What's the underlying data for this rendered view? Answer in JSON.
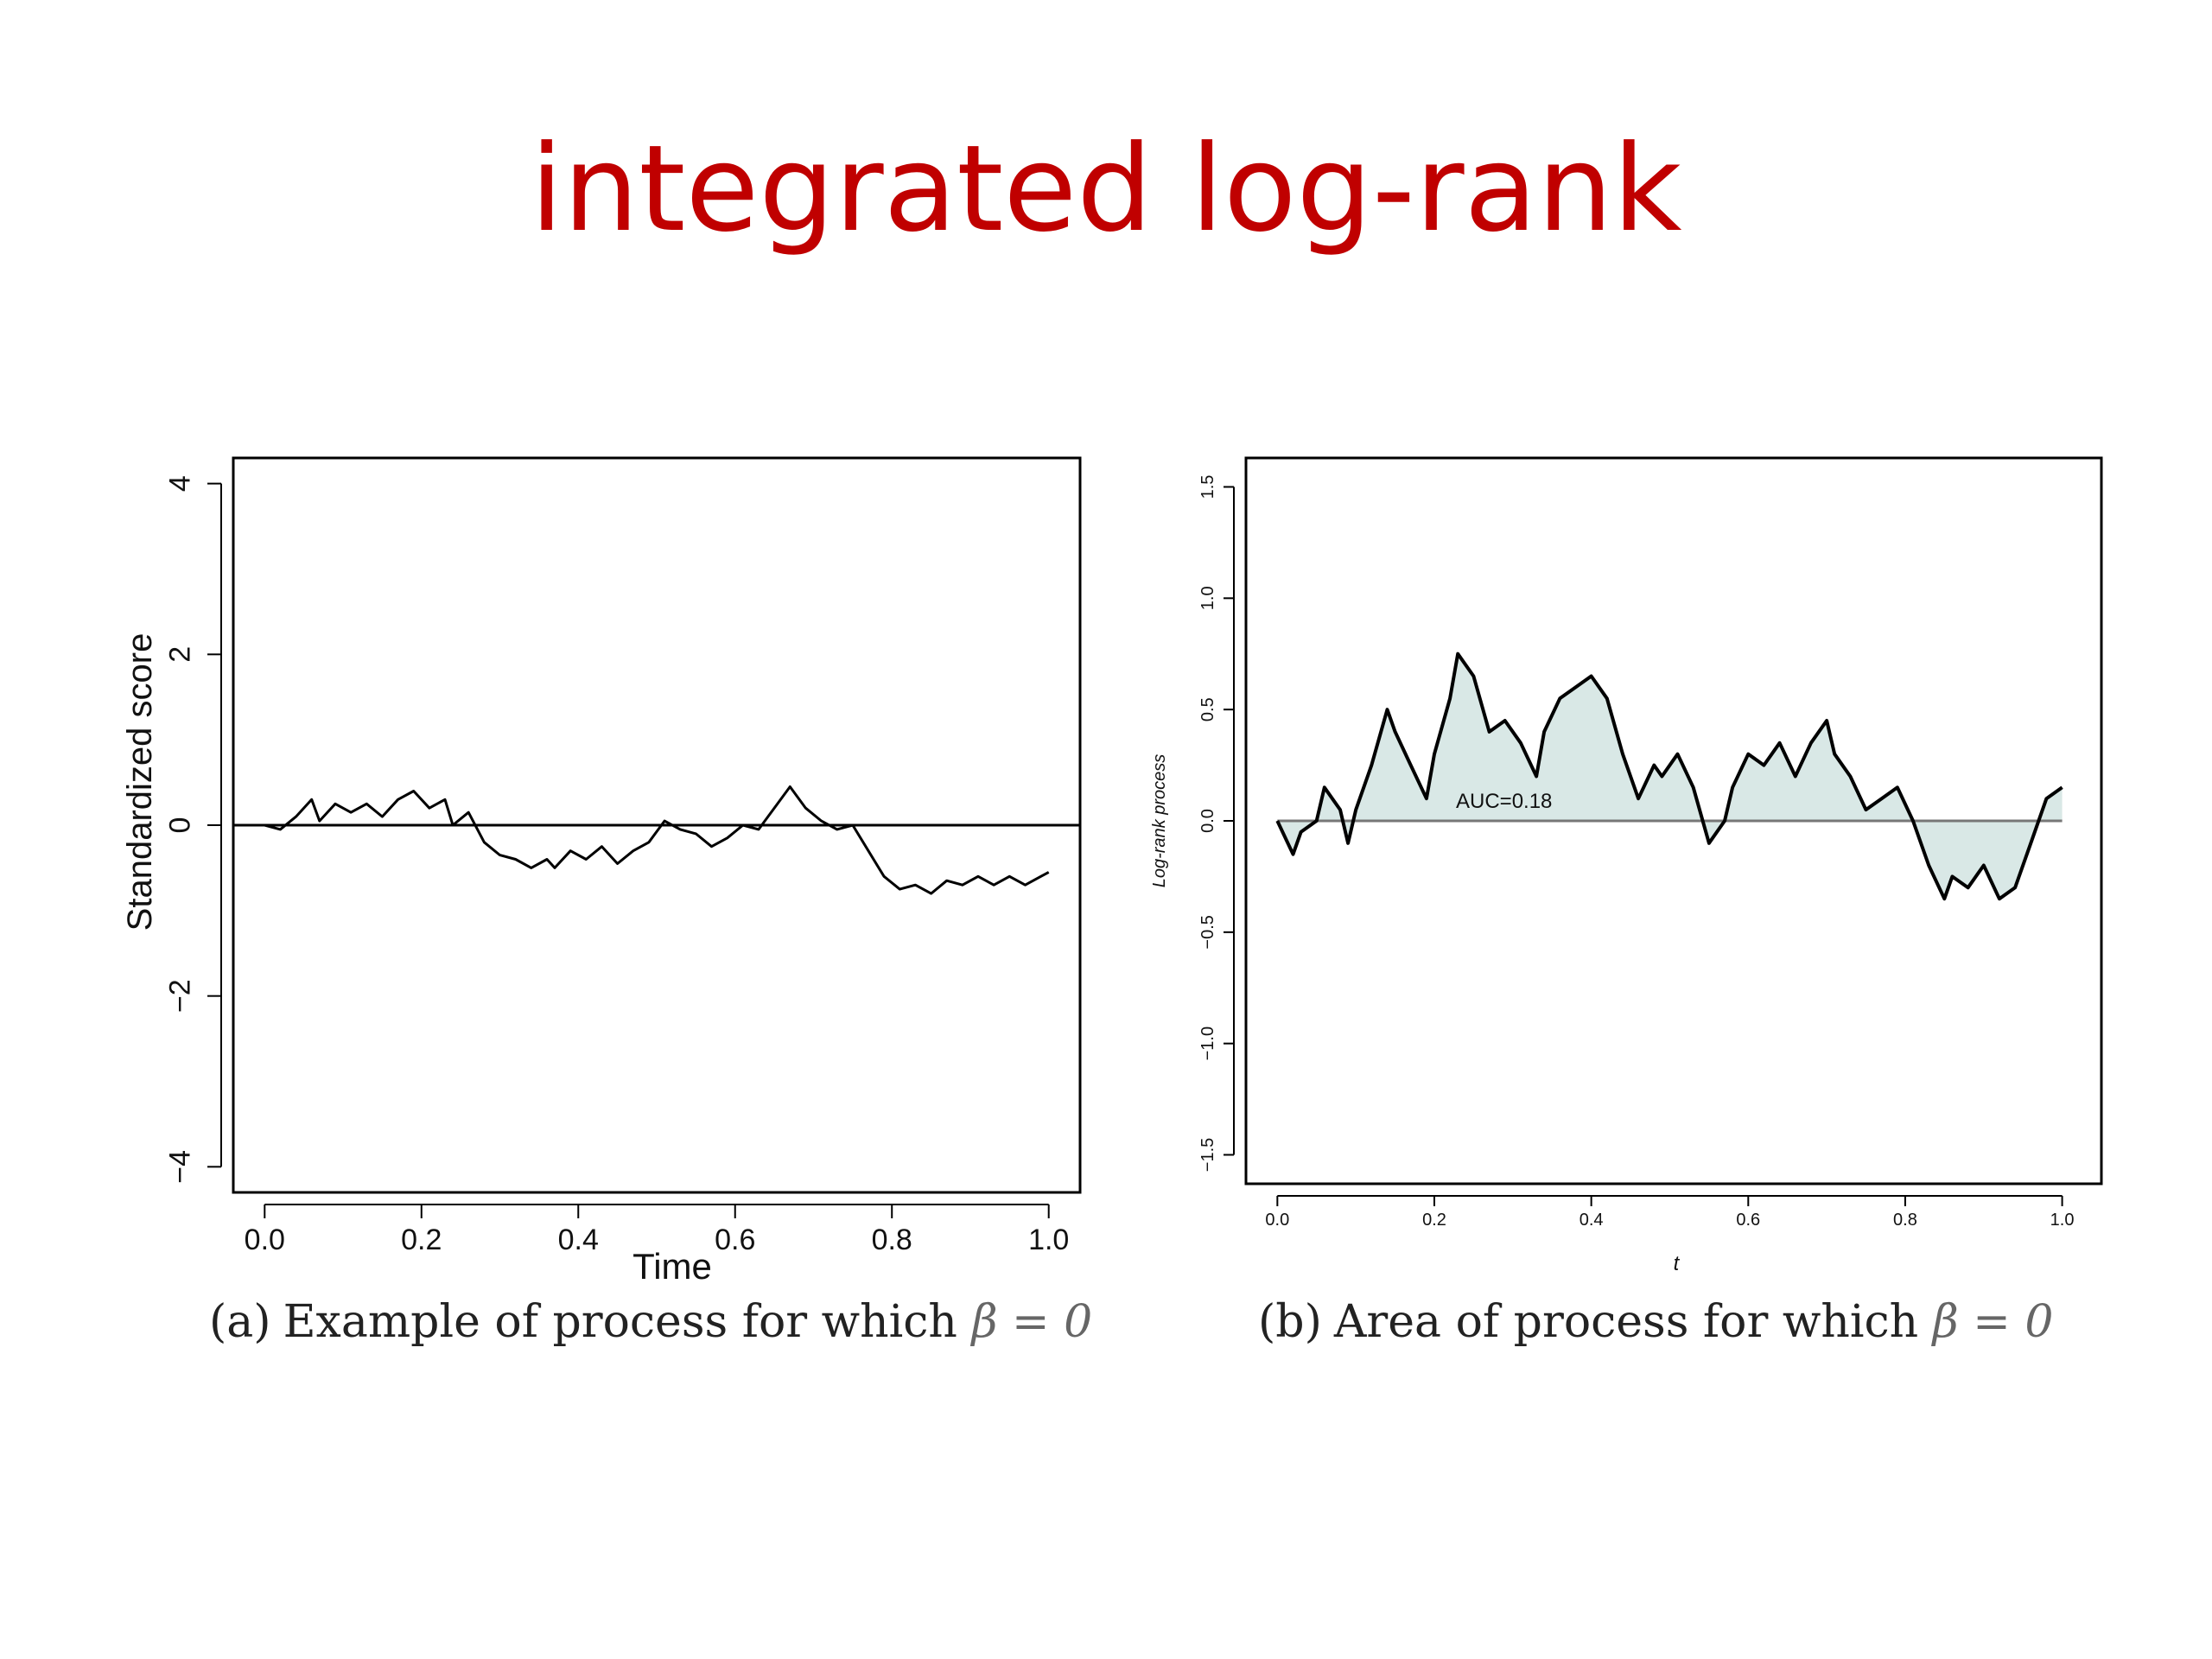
{
  "slide": {
    "title": "integrated log-rank"
  },
  "colors": {
    "title": "#c00000",
    "area_fill": "#d9e8e6",
    "line": "#000000"
  },
  "chart_data": [
    {
      "type": "line",
      "caption_label": "(a)",
      "caption_text": "Example of process for which",
      "caption_math": "β = 0",
      "xlabel": "Time",
      "ylabel": "Standardized score",
      "xlim": [
        -0.04,
        1.04
      ],
      "ylim": [
        -4.3,
        4.3
      ],
      "xticks": [
        "0.0",
        "0.2",
        "0.4",
        "0.6",
        "0.8",
        "1.0"
      ],
      "yticks": [
        "-4",
        "-2",
        "0",
        "2",
        "4"
      ],
      "hline": 0,
      "series": [
        {
          "x": [
            0.0,
            0.02,
            0.04,
            0.06,
            0.07,
            0.09,
            0.11,
            0.13,
            0.15,
            0.17,
            0.19,
            0.21,
            0.23,
            0.24,
            0.26,
            0.28,
            0.3,
            0.32,
            0.34,
            0.36,
            0.37,
            0.39,
            0.41,
            0.43,
            0.45,
            0.47,
            0.49,
            0.51,
            0.53,
            0.55,
            0.57,
            0.59,
            0.61,
            0.63,
            0.65,
            0.67,
            0.69,
            0.71,
            0.73,
            0.75,
            0.77,
            0.79,
            0.81,
            0.83,
            0.85,
            0.87,
            0.89,
            0.91,
            0.93,
            0.95,
            0.97,
            0.99,
            1.0
          ],
          "y": [
            0.0,
            -0.05,
            0.1,
            0.3,
            0.05,
            0.25,
            0.15,
            0.25,
            0.1,
            0.3,
            0.4,
            0.2,
            0.3,
            0.0,
            0.15,
            -0.2,
            -0.35,
            -0.4,
            -0.5,
            -0.4,
            -0.5,
            -0.3,
            -0.4,
            -0.25,
            -0.45,
            -0.3,
            -0.2,
            0.05,
            -0.05,
            -0.1,
            -0.25,
            -0.15,
            0.0,
            -0.05,
            0.2,
            0.45,
            0.2,
            0.05,
            -0.05,
            0.0,
            -0.3,
            -0.6,
            -0.75,
            -0.7,
            -0.8,
            -0.65,
            -0.7,
            -0.6,
            -0.7,
            -0.6,
            -0.7,
            -0.6,
            -0.55
          ]
        }
      ]
    },
    {
      "type": "area",
      "caption_label": "(b)",
      "caption_text": "Area of process for which",
      "caption_math": "β = 0",
      "xlabel": "t",
      "ylabel": "Log-rank process",
      "xlim": [
        -0.04,
        1.05
      ],
      "ylim": [
        -1.63,
        1.63
      ],
      "xticks": [
        "0.0",
        "0.2",
        "0.4",
        "0.6",
        "0.8",
        "1.0"
      ],
      "yticks": [
        "-1.5",
        "-1.0",
        "-0.5",
        "0.0",
        "0.5",
        "1.0",
        "1.5"
      ],
      "hline": 0,
      "annotation": "AUC=0.18",
      "series": [
        {
          "x": [
            0.0,
            0.02,
            0.03,
            0.05,
            0.06,
            0.08,
            0.09,
            0.1,
            0.12,
            0.14,
            0.15,
            0.17,
            0.19,
            0.2,
            0.22,
            0.23,
            0.25,
            0.27,
            0.29,
            0.31,
            0.33,
            0.34,
            0.36,
            0.38,
            0.4,
            0.42,
            0.44,
            0.46,
            0.48,
            0.49,
            0.51,
            0.53,
            0.55,
            0.57,
            0.58,
            0.6,
            0.62,
            0.64,
            0.66,
            0.68,
            0.7,
            0.71,
            0.73,
            0.75,
            0.77,
            0.79,
            0.81,
            0.83,
            0.85,
            0.86,
            0.88,
            0.9,
            0.92,
            0.94,
            0.96,
            0.98,
            1.0
          ],
          "y": [
            0.0,
            -0.15,
            -0.05,
            0.0,
            0.15,
            0.05,
            -0.1,
            0.05,
            0.25,
            0.5,
            0.4,
            0.25,
            0.1,
            0.3,
            0.55,
            0.75,
            0.65,
            0.4,
            0.45,
            0.35,
            0.2,
            0.4,
            0.55,
            0.6,
            0.65,
            0.55,
            0.3,
            0.1,
            0.25,
            0.2,
            0.3,
            0.15,
            -0.1,
            0.0,
            0.15,
            0.3,
            0.25,
            0.35,
            0.2,
            0.35,
            0.45,
            0.3,
            0.2,
            0.05,
            0.1,
            0.15,
            0.0,
            -0.2,
            -0.35,
            -0.25,
            -0.3,
            -0.2,
            -0.35,
            -0.3,
            -0.1,
            0.1,
            0.15
          ]
        }
      ]
    }
  ]
}
